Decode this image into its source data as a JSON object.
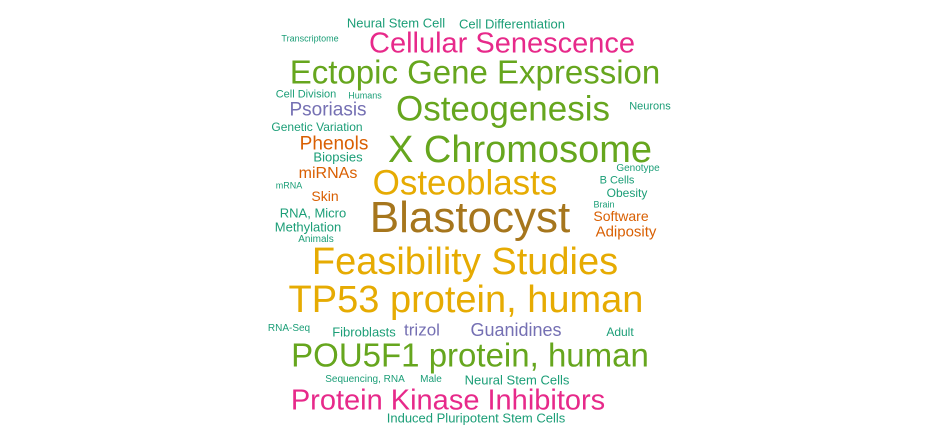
{
  "palette": {
    "green": "#66a61e",
    "teal": "#1b9e77",
    "pink": "#e7298a",
    "purple": "#7570b3",
    "orange": "#d95f02",
    "gold": "#e6ab02",
    "brown": "#a6761d"
  },
  "words": [
    {
      "id": "neural-stem-cell",
      "text": "Neural Stem Cell",
      "color": "teal"
    },
    {
      "id": "cell-differentiation",
      "text": "Cell Differentiation",
      "color": "teal"
    },
    {
      "id": "transcriptome",
      "text": "Transcriptome",
      "color": "teal"
    },
    {
      "id": "cellular-senescence",
      "text": "Cellular Senescence",
      "color": "pink"
    },
    {
      "id": "ectopic-gene-expression",
      "text": "Ectopic Gene Expression",
      "color": "green"
    },
    {
      "id": "cell-division",
      "text": "Cell Division",
      "color": "teal"
    },
    {
      "id": "humans",
      "text": "Humans",
      "color": "teal"
    },
    {
      "id": "psoriasis",
      "text": "Psoriasis",
      "color": "purple"
    },
    {
      "id": "osteogenesis",
      "text": "Osteogenesis",
      "color": "green"
    },
    {
      "id": "neurons",
      "text": "Neurons",
      "color": "teal"
    },
    {
      "id": "genetic-variation",
      "text": "Genetic Variation",
      "color": "teal"
    },
    {
      "id": "phenols",
      "text": "Phenols",
      "color": "orange"
    },
    {
      "id": "x-chromosome",
      "text": "X Chromosome",
      "color": "green"
    },
    {
      "id": "biopsies",
      "text": "Biopsies",
      "color": "teal"
    },
    {
      "id": "genotype",
      "text": "Genotype",
      "color": "teal"
    },
    {
      "id": "mirnas",
      "text": "miRNAs",
      "color": "orange"
    },
    {
      "id": "osteoblasts",
      "text": "Osteoblasts",
      "color": "gold"
    },
    {
      "id": "b-cells",
      "text": "B Cells",
      "color": "teal"
    },
    {
      "id": "mrna",
      "text": "mRNA",
      "color": "teal"
    },
    {
      "id": "skin",
      "text": "Skin",
      "color": "orange"
    },
    {
      "id": "obesity",
      "text": "Obesity",
      "color": "teal"
    },
    {
      "id": "brain",
      "text": "Brain",
      "color": "teal"
    },
    {
      "id": "blastocyst",
      "text": "Blastocyst",
      "color": "brown"
    },
    {
      "id": "rna-micro",
      "text": "RNA, Micro",
      "color": "teal"
    },
    {
      "id": "software",
      "text": "Software",
      "color": "orange"
    },
    {
      "id": "methylation",
      "text": "Methylation",
      "color": "teal"
    },
    {
      "id": "adiposity",
      "text": "Adiposity",
      "color": "orange"
    },
    {
      "id": "animals",
      "text": "Animals",
      "color": "teal"
    },
    {
      "id": "feasibility-studies",
      "text": "Feasibility Studies",
      "color": "gold"
    },
    {
      "id": "tp53-protein-human",
      "text": "TP53 protein, human",
      "color": "gold"
    },
    {
      "id": "rna-seq",
      "text": "RNA-Seq",
      "color": "teal"
    },
    {
      "id": "fibroblasts",
      "text": "Fibroblasts",
      "color": "teal"
    },
    {
      "id": "trizol",
      "text": "trizol",
      "color": "purple"
    },
    {
      "id": "guanidines",
      "text": "Guanidines",
      "color": "purple"
    },
    {
      "id": "adult",
      "text": "Adult",
      "color": "teal"
    },
    {
      "id": "pou5f1-protein-human",
      "text": "POU5F1 protein, human",
      "color": "green"
    },
    {
      "id": "sequencing-rna",
      "text": "Sequencing, RNA",
      "color": "teal"
    },
    {
      "id": "male",
      "text": "Male",
      "color": "teal"
    },
    {
      "id": "neural-stem-cells",
      "text": "Neural Stem Cells",
      "color": "teal"
    },
    {
      "id": "protein-kinase-inhibitors",
      "text": "Protein Kinase Inhibitors",
      "color": "pink"
    },
    {
      "id": "induced-pluripotent-stem-cells",
      "text": "Induced Pluripotent Stem Cells",
      "color": "teal"
    }
  ]
}
